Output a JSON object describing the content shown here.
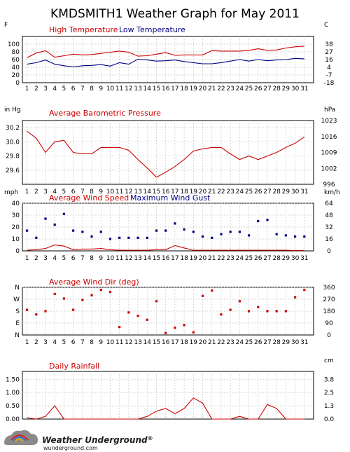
{
  "title": "KMDSMITH1 Weather Graph for May 2011",
  "colors": {
    "red": "#cc0000",
    "blue": "#000088",
    "grid": "#b8b8b8"
  },
  "logo": {
    "name": "Weather Underground",
    "mark": "®",
    "site": "wunderground.com",
    "icon": "rainbow-cloud-icon"
  },
  "chart_data": [
    {
      "type": "line",
      "x": [
        1,
        2,
        3,
        4,
        5,
        6,
        7,
        8,
        9,
        10,
        11,
        12,
        13,
        14,
        15,
        16,
        17,
        18,
        19,
        20,
        21,
        22,
        23,
        24,
        25,
        26,
        27,
        28,
        29,
        30,
        31
      ],
      "left_unit": "F",
      "right_unit": "C",
      "ylim": [
        0,
        120
      ],
      "yticks": [
        0,
        20,
        40,
        60,
        80,
        100
      ],
      "right_ticks": [
        "-18",
        "-7",
        "4",
        "16",
        "27",
        "38"
      ],
      "grid": true,
      "series": [
        {
          "name": "High Temperature",
          "color": "#cc0000",
          "values": [
            65,
            77,
            83,
            66,
            70,
            74,
            72,
            73,
            76,
            79,
            82,
            79,
            69,
            70,
            74,
            78,
            71,
            72,
            72,
            72,
            83,
            82,
            82,
            82,
            84,
            88,
            84,
            85,
            90,
            93,
            95
          ]
        },
        {
          "name": "Low Temperature",
          "color": "#000088",
          "values": [
            48,
            52,
            59,
            48,
            44,
            41,
            44,
            45,
            47,
            43,
            52,
            48,
            61,
            59,
            56,
            57,
            59,
            55,
            52,
            49,
            49,
            52,
            56,
            60,
            56,
            60,
            57,
            59,
            60,
            63,
            62
          ]
        }
      ]
    },
    {
      "type": "line",
      "x": [
        1,
        2,
        3,
        4,
        5,
        6,
        7,
        8,
        9,
        10,
        11,
        12,
        13,
        14,
        15,
        16,
        17,
        18,
        19,
        20,
        21,
        22,
        23,
        24,
        25,
        26,
        27,
        28,
        29,
        30,
        31
      ],
      "left_unit": "in Hg",
      "right_unit": "hPa",
      "ylim": [
        29.4,
        30.3
      ],
      "yticks": [
        29.6,
        29.8,
        30.0,
        30.2
      ],
      "ytick_labels": [
        "29.6",
        "29.8",
        "30.0",
        "30.2"
      ],
      "right_ticks": [
        "996",
        "1002",
        "1009",
        "1016",
        "1023"
      ],
      "grid": true,
      "series": [
        {
          "name": "Average Barometric Pressure",
          "color": "#cc0000",
          "values": [
            30.15,
            30.05,
            29.85,
            30.0,
            30.02,
            29.85,
            29.83,
            29.83,
            29.92,
            29.92,
            29.92,
            29.88,
            29.75,
            29.63,
            29.5,
            29.57,
            29.65,
            29.75,
            29.87,
            29.9,
            29.92,
            29.92,
            29.83,
            29.75,
            29.8,
            29.75,
            29.8,
            29.85,
            29.92,
            29.98,
            30.07
          ]
        }
      ]
    },
    {
      "type": "line",
      "x": [
        1,
        2,
        3,
        4,
        5,
        6,
        7,
        8,
        9,
        10,
        11,
        12,
        13,
        14,
        15,
        16,
        17,
        18,
        19,
        20,
        21,
        22,
        23,
        24,
        25,
        26,
        27,
        28,
        29,
        30,
        31
      ],
      "left_unit": "mph",
      "right_unit": "km/h",
      "ylim": [
        0,
        40
      ],
      "yticks": [
        0,
        10,
        20,
        30,
        40
      ],
      "right_ticks": [
        "0",
        "16",
        "32",
        "48",
        "64"
      ],
      "grid": true,
      "series": [
        {
          "name": "Average Wind Speed",
          "color": "#cc0000",
          "style": "line",
          "values": [
            0.5,
            1.0,
            2.0,
            5.0,
            4.0,
            1.0,
            1.5,
            1.5,
            2.0,
            1.0,
            0.5,
            0.5,
            0.5,
            0.5,
            1.0,
            1.0,
            4.5,
            2.5,
            0.5,
            0.5,
            0.5,
            0.5,
            0.5,
            0.5,
            0.5,
            0.5,
            0.5,
            0.5,
            0.5,
            0.3,
            0.3
          ]
        },
        {
          "name": "Maximum Wind Gust",
          "color": "#000088",
          "style": "points",
          "values": [
            17,
            11,
            27,
            22,
            31,
            17,
            16,
            12,
            16,
            10,
            11,
            11,
            11,
            11,
            17,
            17,
            23,
            18,
            16,
            12,
            11,
            14,
            16,
            16,
            13,
            25,
            26,
            14,
            13,
            12,
            12
          ]
        }
      ]
    },
    {
      "type": "scatter",
      "x": [
        1,
        2,
        3,
        4,
        5,
        6,
        7,
        8,
        9,
        10,
        11,
        12,
        13,
        14,
        15,
        16,
        17,
        18,
        19,
        20,
        21,
        22,
        23,
        24,
        25,
        26,
        27,
        28,
        29,
        30,
        31
      ],
      "right_unit": "",
      "ylim": [
        0,
        360
      ],
      "yticks": [
        0,
        90,
        180,
        270,
        360
      ],
      "left_ticks": [
        "N",
        "E",
        "S",
        "W",
        "N"
      ],
      "right_ticks": [
        "0",
        "90",
        "180",
        "270",
        "360"
      ],
      "grid": true,
      "series": [
        {
          "name": "Average Wind Dir (deg)",
          "color": "#cc0000",
          "values": [
            190,
            155,
            180,
            310,
            275,
            190,
            265,
            300,
            340,
            325,
            60,
            170,
            145,
            115,
            255,
            15,
            55,
            75,
            20,
            295,
            335,
            155,
            190,
            255,
            180,
            210,
            180,
            180,
            180,
            285,
            340
          ]
        }
      ]
    },
    {
      "type": "line",
      "x": [
        1,
        2,
        3,
        4,
        5,
        6,
        7,
        8,
        9,
        10,
        11,
        12,
        13,
        14,
        15,
        16,
        17,
        18,
        19,
        20,
        21,
        22,
        23,
        24,
        25,
        26,
        27,
        28,
        29,
        30,
        31
      ],
      "right_unit": "cm",
      "ylim": [
        0,
        1.8
      ],
      "yticks": [
        0,
        0.5,
        1.0,
        1.5
      ],
      "ytick_labels": [
        "0.00",
        "0.50",
        "1.00",
        "1.50"
      ],
      "right_ticks": [
        "0.0",
        "1.3",
        "2.5",
        "3.8"
      ],
      "grid": true,
      "series": [
        {
          "name": "Daily Rainfall",
          "color": "#cc0000",
          "values": [
            0.05,
            0.0,
            0.1,
            0.5,
            0.0,
            0.0,
            0.0,
            0.0,
            0.0,
            0.0,
            0.0,
            0.0,
            0.0,
            0.1,
            0.3,
            0.4,
            0.2,
            0.4,
            0.8,
            0.6,
            0.0,
            0.0,
            0.0,
            0.1,
            0.0,
            0.0,
            0.55,
            0.4,
            0.0,
            0.0,
            0.0
          ]
        }
      ]
    }
  ]
}
